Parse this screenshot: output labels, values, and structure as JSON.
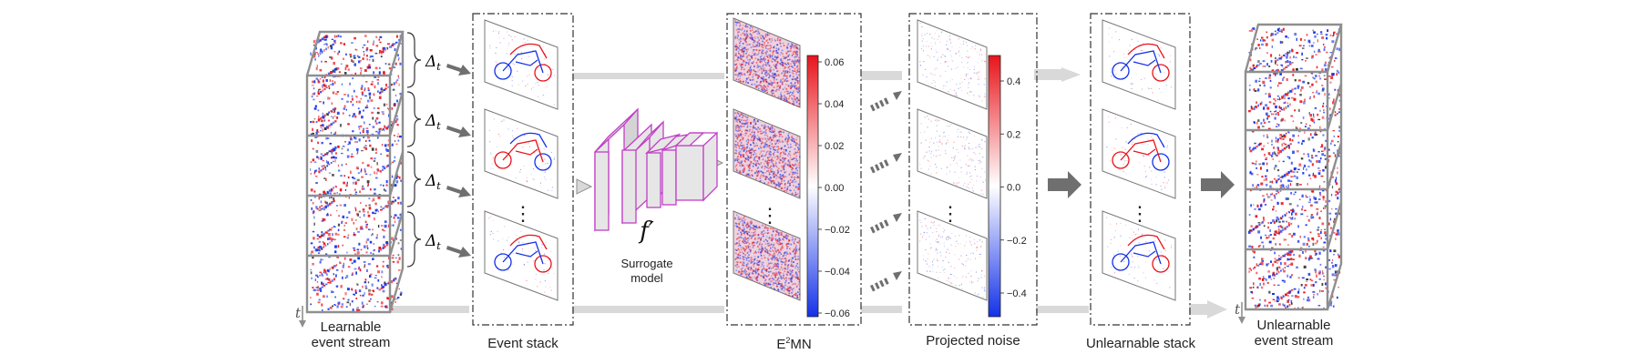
{
  "stages": {
    "learnable_stream": {
      "line1": "Learnable",
      "line2": "event stream"
    },
    "event_stack": "Event stack",
    "surrogate": {
      "symbol": "f′",
      "line1": "Surrogate",
      "line2": "model"
    },
    "e2mn": {
      "base": "E",
      "sup": "2",
      "rest": "MN"
    },
    "projected_noise": "Projected noise",
    "unlearnable_stack": "Unlearnable stack",
    "unlearnable_stream": {
      "line1": "Unlearnable",
      "line2": "event stream"
    }
  },
  "delta_label": {
    "symbol": "Δ",
    "sub": "t"
  },
  "time_label": "t",
  "ellipsis": "⋮",
  "colorbars": [
    {
      "ticks": [
        "0.06",
        "0.04",
        "0.02",
        "0.00",
        "−0.02",
        "−0.04",
        "−0.06"
      ]
    },
    {
      "ticks": [
        "0.4",
        "0.2",
        "0.0",
        "−0.2",
        "−0.4"
      ]
    }
  ],
  "colors": {
    "pos": "#e8141b",
    "neg": "#1431e8",
    "surrogate": "#c23fc7",
    "arrow": "#6f6f6f",
    "track": "#d9d9d9"
  }
}
